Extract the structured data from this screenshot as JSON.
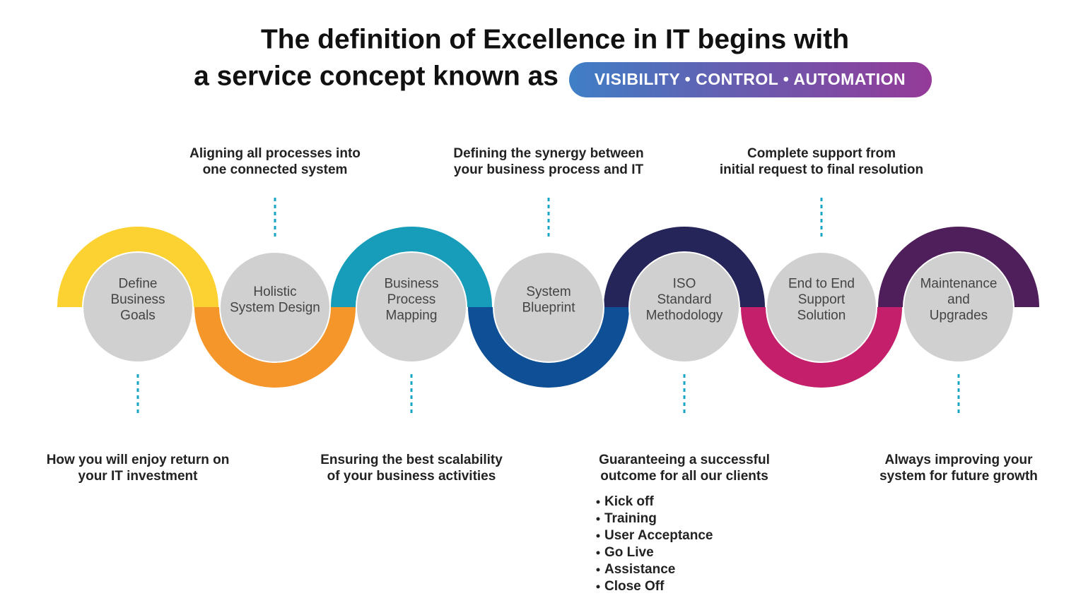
{
  "title": {
    "line1": "The definition of Excellence in IT begins with",
    "line2": "a service concept known as",
    "highlight": "VISIBILITY • CONTROL • AUTOMATION"
  },
  "steps": [
    {
      "label": [
        "Define",
        "Business",
        "Goals"
      ],
      "description": [
        "How you will enjoy return on",
        "your IT investment"
      ]
    },
    {
      "label": [
        "Holistic",
        "System Design"
      ],
      "description": [
        "Aligning all processes into",
        "one connected system"
      ]
    },
    {
      "label": [
        "Business",
        "Process",
        "Mapping"
      ],
      "description": [
        "Ensuring the best scalability",
        "of your business activities"
      ]
    },
    {
      "label": [
        "System",
        "Blueprint"
      ],
      "description": [
        "Defining the synergy between",
        "your business process and IT"
      ]
    },
    {
      "label": [
        "ISO",
        "Standard",
        "Methodology"
      ],
      "description": [
        "Guaranteeing a successful",
        "outcome for all our clients"
      ],
      "bullets": [
        "Kick off",
        "Training",
        "User Acceptance",
        "Go Live",
        "Assistance",
        "Close Off"
      ]
    },
    {
      "label": [
        "End to End",
        "Support",
        "Solution"
      ],
      "description": [
        "Complete support from",
        "initial request to final resolution"
      ]
    },
    {
      "label": [
        "Maintenance",
        "and",
        "Upgrades"
      ],
      "description": [
        "Always improving your",
        "system for future growth"
      ]
    }
  ]
}
